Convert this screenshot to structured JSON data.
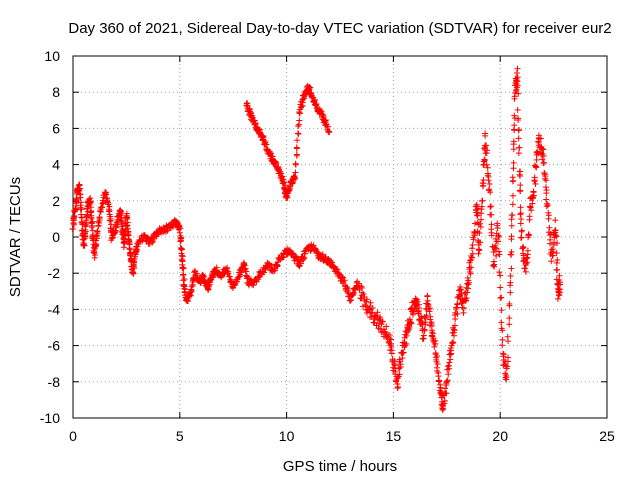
{
  "chart_data": {
    "type": "scatter",
    "title": "Day 360 of 2021, Sidereal Day-to-day VTEC variation (SDTVAR) for receiver eur2",
    "xlabel": "GPS time / hours",
    "ylabel": "SDTVAR / TECUs",
    "xlim": [
      0,
      25
    ],
    "ylim": [
      -10,
      10
    ],
    "xticks": [
      "0",
      "5",
      "10",
      "15",
      "20",
      "25"
    ],
    "yticks": [
      "10",
      "8",
      "6",
      "4",
      "2",
      "0",
      "-2",
      "-4",
      "-6",
      "-8",
      "-10"
    ],
    "grid": true,
    "marker": "+",
    "series_color": "#ff0000",
    "series": [
      {
        "name": "SDTVAR",
        "points": [
          [
            0.0,
            0.5
          ],
          [
            0.1,
            1.5
          ],
          [
            0.2,
            2.5
          ],
          [
            0.3,
            2.8
          ],
          [
            0.4,
            1.0
          ],
          [
            0.5,
            -0.5
          ],
          [
            0.6,
            0.5
          ],
          [
            0.7,
            1.8
          ],
          [
            0.8,
            2.0
          ],
          [
            0.9,
            0.5
          ],
          [
            1.0,
            -1.0
          ],
          [
            1.1,
            0.0
          ],
          [
            1.3,
            1.5
          ],
          [
            1.5,
            2.5
          ],
          [
            1.7,
            1.5
          ],
          [
            1.8,
            0.0
          ],
          [
            2.0,
            0.5
          ],
          [
            2.2,
            1.5
          ],
          [
            2.3,
            0.5
          ],
          [
            2.4,
            -0.5
          ],
          [
            2.5,
            1.2
          ],
          [
            2.6,
            0.0
          ],
          [
            2.7,
            -1.0
          ],
          [
            2.8,
            -2.0
          ],
          [
            2.9,
            -1.0
          ],
          [
            3.0,
            -0.5
          ],
          [
            3.3,
            0.0
          ],
          [
            3.6,
            -0.3
          ],
          [
            3.9,
            0.2
          ],
          [
            4.2,
            0.4
          ],
          [
            4.5,
            0.5
          ],
          [
            4.8,
            0.8
          ],
          [
            5.0,
            0.5
          ],
          [
            5.1,
            -1.0
          ],
          [
            5.2,
            -2.5
          ],
          [
            5.3,
            -3.5
          ],
          [
            5.5,
            -3.2
          ],
          [
            5.7,
            -2.0
          ],
          [
            5.9,
            -2.5
          ],
          [
            6.1,
            -2.2
          ],
          [
            6.3,
            -2.8
          ],
          [
            6.5,
            -2.2
          ],
          [
            6.7,
            -1.8
          ],
          [
            6.9,
            -2.2
          ],
          [
            7.2,
            -1.8
          ],
          [
            7.5,
            -2.8
          ],
          [
            7.8,
            -2.0
          ],
          [
            8.0,
            -1.5
          ],
          [
            8.2,
            -2.5
          ],
          [
            8.5,
            -2.5
          ],
          [
            8.8,
            -2.0
          ],
          [
            9.1,
            -1.5
          ],
          [
            9.4,
            -1.8
          ],
          [
            9.7,
            -1.2
          ],
          [
            10.0,
            -0.8
          ],
          [
            10.3,
            -1.0
          ],
          [
            10.6,
            -1.5
          ],
          [
            10.9,
            -0.8
          ],
          [
            11.2,
            -0.5
          ],
          [
            11.5,
            -1.0
          ],
          [
            11.8,
            -1.2
          ],
          [
            12.1,
            -1.5
          ],
          [
            12.4,
            -2.0
          ],
          [
            12.7,
            -2.5
          ],
          [
            13.0,
            -3.5
          ],
          [
            13.3,
            -2.5
          ],
          [
            13.6,
            -3.5
          ],
          [
            13.9,
            -4.0
          ],
          [
            14.2,
            -4.5
          ],
          [
            14.5,
            -5.0
          ],
          [
            14.8,
            -5.5
          ],
          [
            15.0,
            -7.0
          ],
          [
            15.2,
            -8.0
          ],
          [
            15.4,
            -6.5
          ],
          [
            15.6,
            -5.5
          ],
          [
            15.8,
            -4.5
          ],
          [
            16.0,
            -3.5
          ],
          [
            16.2,
            -4.0
          ],
          [
            16.4,
            -5.5
          ],
          [
            16.6,
            -3.5
          ],
          [
            16.8,
            -5.0
          ],
          [
            17.0,
            -6.5
          ],
          [
            17.2,
            -8.5
          ],
          [
            17.3,
            -9.5
          ],
          [
            17.5,
            -8.0
          ],
          [
            17.7,
            -6.0
          ],
          [
            17.9,
            -4.5
          ],
          [
            18.1,
            -3.0
          ],
          [
            18.3,
            -4.0
          ],
          [
            18.5,
            -2.5
          ],
          [
            18.7,
            -1.0
          ],
          [
            18.9,
            2.0
          ],
          [
            19.0,
            -1.0
          ],
          [
            19.2,
            3.0
          ],
          [
            19.3,
            5.5
          ],
          [
            19.5,
            2.5
          ],
          [
            19.7,
            -1.5
          ],
          [
            19.9,
            0.5
          ],
          [
            20.1,
            -6.0
          ],
          [
            20.3,
            -8.0
          ],
          [
            20.5,
            -2.0
          ],
          [
            20.6,
            3.0
          ],
          [
            20.7,
            8.0
          ],
          [
            20.8,
            9.0
          ],
          [
            20.9,
            4.0
          ],
          [
            21.0,
            0.0
          ],
          [
            21.2,
            -2.0
          ],
          [
            21.4,
            1.5
          ],
          [
            21.6,
            3.0
          ],
          [
            21.8,
            5.5
          ],
          [
            22.0,
            4.5
          ],
          [
            22.2,
            2.0
          ],
          [
            22.4,
            -1.0
          ],
          [
            22.6,
            0.5
          ],
          [
            22.7,
            -3.0
          ],
          [
            22.8,
            -2.5
          ],
          [
            8.1,
            7.4
          ],
          [
            8.3,
            6.8
          ],
          [
            8.5,
            6.3
          ],
          [
            8.7,
            5.8
          ],
          [
            8.9,
            5.4
          ],
          [
            9.1,
            4.8
          ],
          [
            9.3,
            4.4
          ],
          [
            9.5,
            4.0
          ],
          [
            9.7,
            3.5
          ],
          [
            9.9,
            2.8
          ],
          [
            10.0,
            2.2
          ],
          [
            10.2,
            3.0
          ],
          [
            10.4,
            3.4
          ],
          [
            10.6,
            6.8
          ],
          [
            10.8,
            7.8
          ],
          [
            11.0,
            8.3
          ],
          [
            11.2,
            7.8
          ],
          [
            11.4,
            7.2
          ],
          [
            11.6,
            6.8
          ],
          [
            11.8,
            6.4
          ],
          [
            12.0,
            5.8
          ]
        ]
      }
    ]
  }
}
